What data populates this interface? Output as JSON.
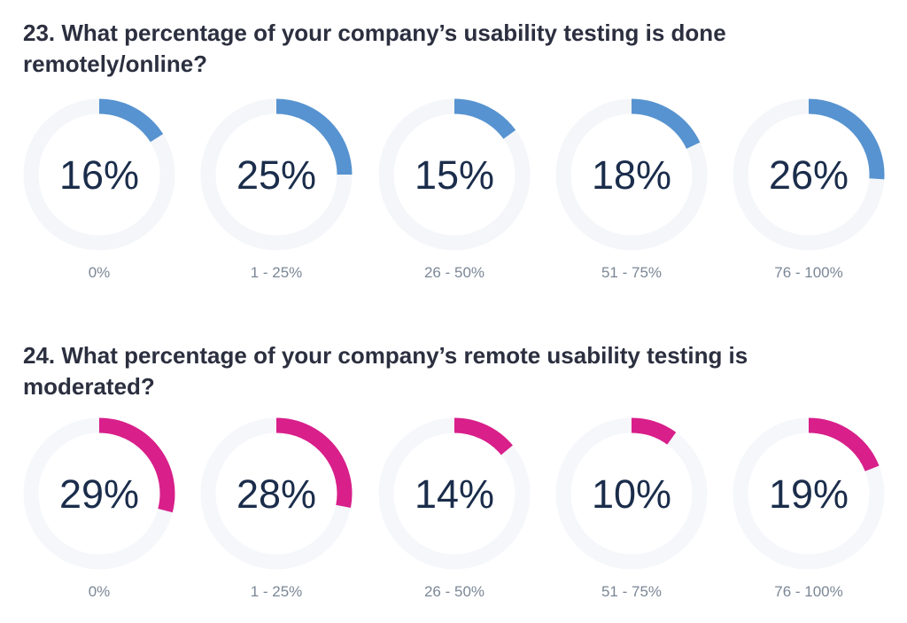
{
  "chart_data": [
    {
      "type": "donut",
      "title": "23. What percentage of your company’s usability testing is done remotely/online?",
      "categories": [
        "0%",
        "1 - 25%",
        "26 - 50%",
        "51 - 75%",
        "76 - 100%"
      ],
      "values": [
        16,
        25,
        15,
        18,
        26
      ],
      "value_labels": [
        "16%",
        "25%",
        "15%",
        "18%",
        "26%"
      ],
      "color": "#5793d0",
      "track_color": "#f4f6f9"
    },
    {
      "type": "donut",
      "title": "24. What percentage of your company’s remote usability testing is moderated?",
      "categories": [
        "0%",
        "1 - 25%",
        "26 - 50%",
        "51 - 75%",
        "76 - 100%"
      ],
      "values": [
        29,
        28,
        14,
        10,
        19
      ],
      "value_labels": [
        "29%",
        "28%",
        "14%",
        "10%",
        "19%"
      ],
      "color": "#d81f8a",
      "track_color": "#f5f7fb"
    }
  ]
}
